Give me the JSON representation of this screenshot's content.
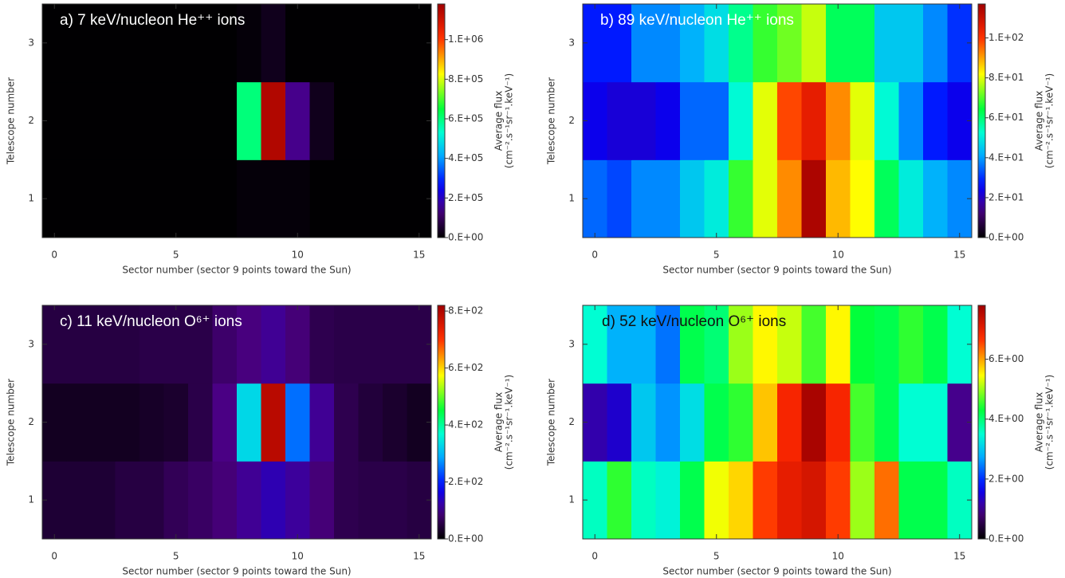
{
  "chart_data": [
    {
      "type": "heatmap",
      "title": "a) 7 keV/nucleon He⁺⁺ ions",
      "colormap": "rainbow",
      "x_label": "Sector number (sector 9 points toward the Sun)",
      "y_label": "Telescope number",
      "colorbar_label": [
        "Average flux",
        "(cm⁻².s⁻¹sr⁻¹.keV⁻¹)"
      ],
      "x": [
        0,
        1,
        2,
        3,
        4,
        5,
        6,
        7,
        8,
        9,
        10,
        11,
        12,
        13,
        14,
        15
      ],
      "y": [
        1,
        2,
        3
      ],
      "values": [
        [
          2000,
          2000,
          2000,
          2000,
          2000,
          2000,
          2000,
          2000,
          10000,
          10000,
          10000,
          2000,
          2000,
          2000,
          2000,
          2000
        ],
        [
          2000,
          2000,
          2000,
          2000,
          2000,
          2000,
          2000,
          2000,
          600000,
          1150000,
          150000,
          30000,
          2000,
          2000,
          2000,
          2000
        ],
        [
          2000,
          2000,
          2000,
          2000,
          2000,
          2000,
          2000,
          2000,
          10000,
          30000,
          2000,
          2000,
          2000,
          2000,
          2000,
          2000
        ]
      ],
      "xlim": [
        -0.5,
        15.5
      ],
      "ylim": [
        0.5,
        3.5
      ],
      "xticks": [
        0,
        5,
        10,
        15
      ],
      "yticks": [
        1,
        2,
        3
      ],
      "zlim": [
        0,
        1180000
      ],
      "zticks": [
        {
          "value": 0,
          "label": "0.E+00"
        },
        {
          "value": 200000,
          "label": "2.E+05"
        },
        {
          "value": 400000,
          "label": "4.E+05"
        },
        {
          "value": 600000,
          "label": "6.E+05"
        },
        {
          "value": 800000,
          "label": "8.E+05"
        },
        {
          "value": 1000000,
          "label": "1.E+06"
        }
      ]
    },
    {
      "type": "heatmap",
      "title": "b) 89 keV/nucleon He⁺⁺ ions",
      "colormap": "rainbow",
      "x_label": "Sector number (sector 9 points toward the Sun)",
      "y_label": "Telescope number",
      "colorbar_label": [
        "Average flux",
        "(cm⁻².s⁻¹sr⁻¹.keV⁻¹)"
      ],
      "x": [
        0,
        1,
        2,
        3,
        4,
        5,
        6,
        7,
        8,
        9,
        10,
        11,
        12,
        13,
        14,
        15
      ],
      "y": [
        1,
        2,
        3
      ],
      "values": [
        [
          35,
          32,
          38,
          38,
          45,
          50,
          68,
          80,
          92,
          115,
          88,
          82,
          62,
          50,
          42,
          38
        ],
        [
          24,
          22,
          22,
          24,
          35,
          35,
          52,
          80,
          98,
          105,
          92,
          80,
          52,
          38,
          28,
          24
        ],
        [
          28,
          28,
          38,
          38,
          42,
          48,
          58,
          68,
          72,
          78,
          62,
          62,
          45,
          45,
          38,
          30
        ]
      ],
      "xlim": [
        -0.5,
        15.5
      ],
      "ylim": [
        0.5,
        3.5
      ],
      "xticks": [
        0,
        5,
        10,
        15
      ],
      "yticks": [
        1,
        2,
        3
      ],
      "zlim": [
        0,
        117
      ],
      "zticks": [
        {
          "value": 0,
          "label": "0.E+00"
        },
        {
          "value": 20,
          "label": "2.E+01"
        },
        {
          "value": 40,
          "label": "4.E+01"
        },
        {
          "value": 60,
          "label": "6.E+01"
        },
        {
          "value": 80,
          "label": "8.E+01"
        },
        {
          "value": 100,
          "label": "1.E+02"
        }
      ]
    },
    {
      "type": "heatmap",
      "title": "c) 11 keV/nucleon O⁶⁺ ions",
      "colormap": "rainbow",
      "x_label": "Sector number (sector 9 points toward the Sun)",
      "y_label": "Telescope number",
      "colorbar_label": [
        "Average flux",
        "(cm⁻².s⁻¹sr⁻¹.keV⁻¹)"
      ],
      "x": [
        0,
        1,
        2,
        3,
        4,
        5,
        6,
        7,
        8,
        9,
        10,
        11,
        12,
        13,
        14,
        15
      ],
      "y": [
        1,
        2,
        3
      ],
      "values": [
        [
          40,
          40,
          40,
          50,
          50,
          65,
          75,
          90,
          110,
          130,
          115,
          90,
          60,
          55,
          55,
          50
        ],
        [
          25,
          25,
          25,
          25,
          30,
          35,
          55,
          100,
          330,
          790,
          250,
          110,
          60,
          45,
          35,
          25
        ],
        [
          50,
          50,
          50,
          50,
          55,
          55,
          55,
          80,
          95,
          110,
          90,
          60,
          55,
          55,
          55,
          55
        ]
      ],
      "xlim": [
        -0.5,
        15.5
      ],
      "ylim": [
        0.5,
        3.5
      ],
      "xticks": [
        0,
        5,
        10,
        15
      ],
      "yticks": [
        1,
        2,
        3
      ],
      "zlim": [
        0,
        820
      ],
      "zticks": [
        {
          "value": 0,
          "label": "0.E+00"
        },
        {
          "value": 200,
          "label": "2.E+02"
        },
        {
          "value": 400,
          "label": "4.E+02"
        },
        {
          "value": 600,
          "label": "6.E+02"
        },
        {
          "value": 800,
          "label": "8.E+02"
        }
      ]
    },
    {
      "type": "heatmap",
      "title": "d) 52 keV/nucleon O⁶⁺ ions",
      "colormap": "rainbow",
      "x_label": "Sector number (sector 9 points toward the Sun)",
      "y_label": "Telescope number",
      "colorbar_label": [
        "Average flux",
        "(cm⁻².s⁻¹sr⁻¹.keV⁻¹)"
      ],
      "x": [
        0,
        1,
        2,
        3,
        4,
        5,
        6,
        7,
        8,
        9,
        10,
        11,
        12,
        13,
        14,
        15
      ],
      "y": [
        1,
        2,
        3
      ],
      "values": [
        [
          3.6,
          4.5,
          3.6,
          3.4,
          4.2,
          5.4,
          5.7,
          6.6,
          7.0,
          7.2,
          6.6,
          5.0,
          6.3,
          4.2,
          4.2,
          3.6
        ],
        [
          1.2,
          1.4,
          3.0,
          2.6,
          3.2,
          4.2,
          4.5,
          5.8,
          6.8,
          7.7,
          6.8,
          4.6,
          4.2,
          3.5,
          3.5,
          1.0
        ],
        [
          3.5,
          2.8,
          2.8,
          2.4,
          4.2,
          4.0,
          5.0,
          5.5,
          5.2,
          4.6,
          5.5,
          4.3,
          4.2,
          4.5,
          4.2,
          3.5
        ]
      ],
      "xlim": [
        -0.5,
        15.5
      ],
      "ylim": [
        0.5,
        3.5
      ],
      "xticks": [
        0,
        5,
        10,
        15
      ],
      "yticks": [
        1,
        2,
        3
      ],
      "zlim": [
        0,
        7.8
      ],
      "zticks": [
        {
          "value": 0,
          "label": "0.E+00"
        },
        {
          "value": 2,
          "label": "2.E+00"
        },
        {
          "value": 4,
          "label": "4.E+00"
        },
        {
          "value": 6,
          "label": "6.E+00"
        }
      ]
    }
  ]
}
